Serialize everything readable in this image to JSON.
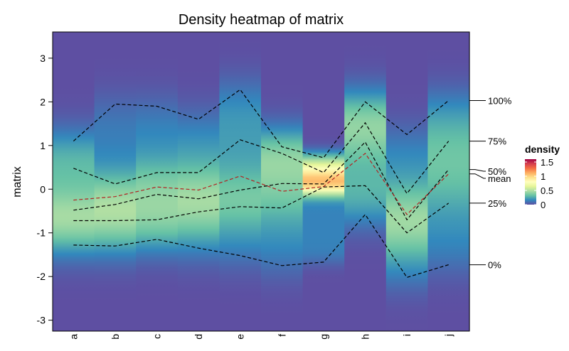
{
  "chart_data": {
    "type": "heatmap",
    "title": "Density heatmap of matrix",
    "ylabel": "matrix",
    "ylim": [
      -3.25,
      3.6
    ],
    "yticks": [
      "-3",
      "-2",
      "-1",
      "0",
      "1",
      "2",
      "3"
    ],
    "categories": [
      "a",
      "b",
      "c",
      "d",
      "e",
      "f",
      "g",
      "h",
      "i",
      "j"
    ],
    "colorscale": {
      "name": "density",
      "range": [
        0,
        1.6
      ],
      "ticks": [
        "0",
        "0.5",
        "1",
        "1.5"
      ],
      "colors": [
        "#5E4FA2",
        "#3288BD",
        "#66C2A5",
        "#ABDDA4",
        "#E6F598",
        "#FFFFBF",
        "#FEE08B",
        "#FDAE61",
        "#F46D43",
        "#D53E4F",
        "#9E0142"
      ]
    },
    "quantiles": [
      {
        "name": "100%",
        "values": [
          1.1,
          1.95,
          1.9,
          1.6,
          2.28,
          0.97,
          0.72,
          2.0,
          1.25,
          2.03
        ]
      },
      {
        "name": "75%",
        "values": [
          0.48,
          0.12,
          0.38,
          0.38,
          1.13,
          0.82,
          0.38,
          1.52,
          -0.1,
          1.1
        ]
      },
      {
        "name": "50%",
        "values": [
          -0.48,
          -0.35,
          -0.12,
          -0.22,
          -0.02,
          0.13,
          0.12,
          1.08,
          -0.7,
          0.45
        ]
      },
      {
        "name": "mean",
        "values": [
          -0.25,
          -0.17,
          0.05,
          -0.02,
          0.3,
          -0.05,
          0.06,
          0.82,
          -0.58,
          0.35
        ]
      },
      {
        "name": "25%",
        "values": [
          -0.72,
          -0.72,
          -0.7,
          -0.52,
          -0.4,
          -0.43,
          0.05,
          0.08,
          -1.0,
          -0.32
        ]
      },
      {
        "name": "0%",
        "values": [
          -1.28,
          -1.3,
          -1.15,
          -1.35,
          -1.52,
          -1.75,
          -1.67,
          -0.58,
          -2.02,
          -1.73
        ]
      }
    ],
    "quantile_colors": {
      "default": "#000000",
      "mean": "#B22222"
    }
  }
}
